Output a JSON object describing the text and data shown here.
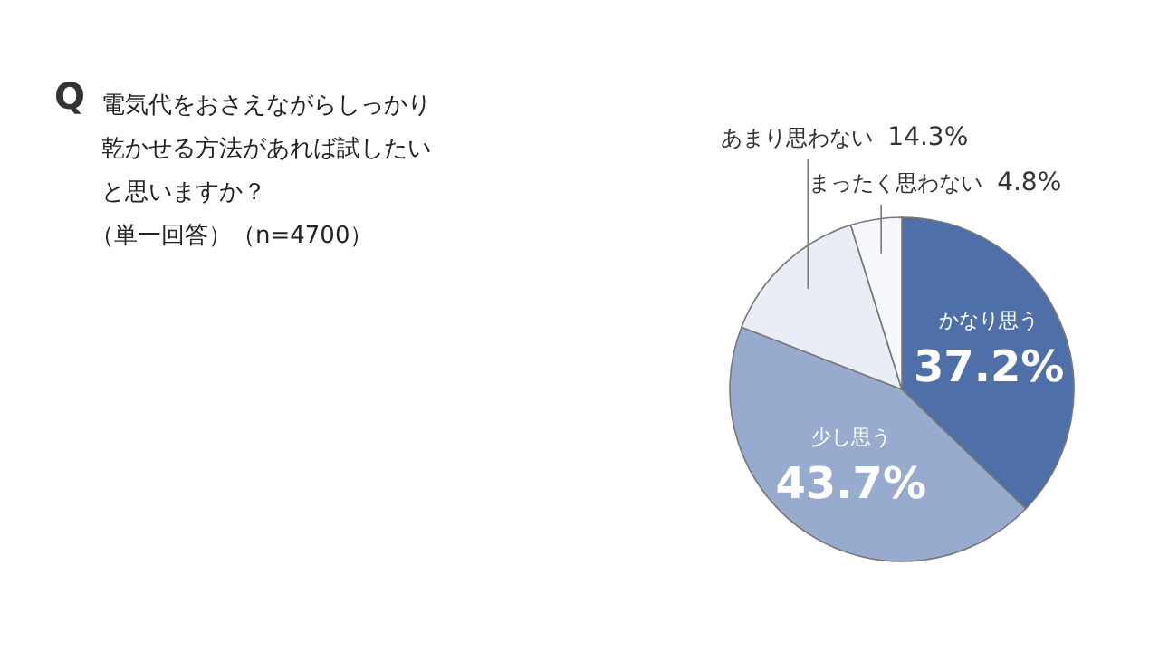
{
  "chart_data": {
    "type": "pie",
    "title": "電気代をおさえながらしっかり乾かせる方法があれば試したいと思いますか？",
    "subtitle": "（単一回答）（n=4700）",
    "annotations": [
      "Q"
    ],
    "categories": [
      "かなり思う",
      "少し思う",
      "あまり思わない",
      "まったく思わない"
    ],
    "values": [
      37.2,
      43.7,
      14.3,
      4.8
    ],
    "value_labels": [
      "37.2%",
      "43.7%",
      "14.3%",
      "4.8%"
    ],
    "colors": [
      "#4f6fa8",
      "#97abcf",
      "#e9edf5",
      "#f7f8fb"
    ]
  }
}
